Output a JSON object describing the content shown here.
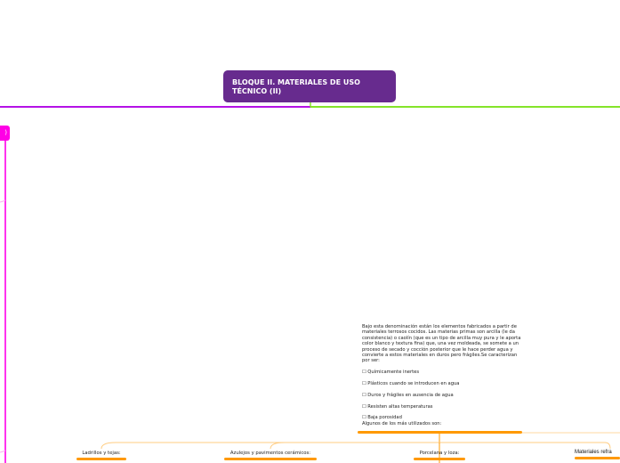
{
  "central_topic": {
    "title": "BLOQUE II. MATERIALES DE USO TÉCNICO (II)",
    "color": "#672b8e"
  },
  "left_branch": {
    "label_fragment": ")",
    "color": "#ff00e6"
  },
  "line_colors": {
    "left": "#b412e6",
    "right": "#84e42a",
    "children": "#ff9900"
  },
  "topic": {
    "description": "Bajo esta denominación están los elementos fabricados a partir de materiales terrosos cocidos. Las materias primas son arcilla (le da consistencia) o caolín (que es un tipo de arcilla muy pura y le aporta color blanco y textura fina) que, una vez moldeada, se somete a un proceso de secado y cocción posterior que le hace perder agua y convierte a estos materiales en duros pero frágiles.Se caracterizan por ser:",
    "features": [
      "☐ Químicamente inertes",
      "☐ Plásticos cuando se introducen en agua",
      "☐ Duros y frágiles en ausencia de agua",
      "☐ Resisten altas temperaturas",
      "☐ Baja porosidad"
    ],
    "footer": "Algunos de los más utilizados son:"
  },
  "children": [
    {
      "label": "Ladrillos y tejas:"
    },
    {
      "label": "Azulejos y pavimentos cerámicos:"
    },
    {
      "label": "Porcelana y loza:"
    },
    {
      "label": "Materiales refra"
    }
  ]
}
